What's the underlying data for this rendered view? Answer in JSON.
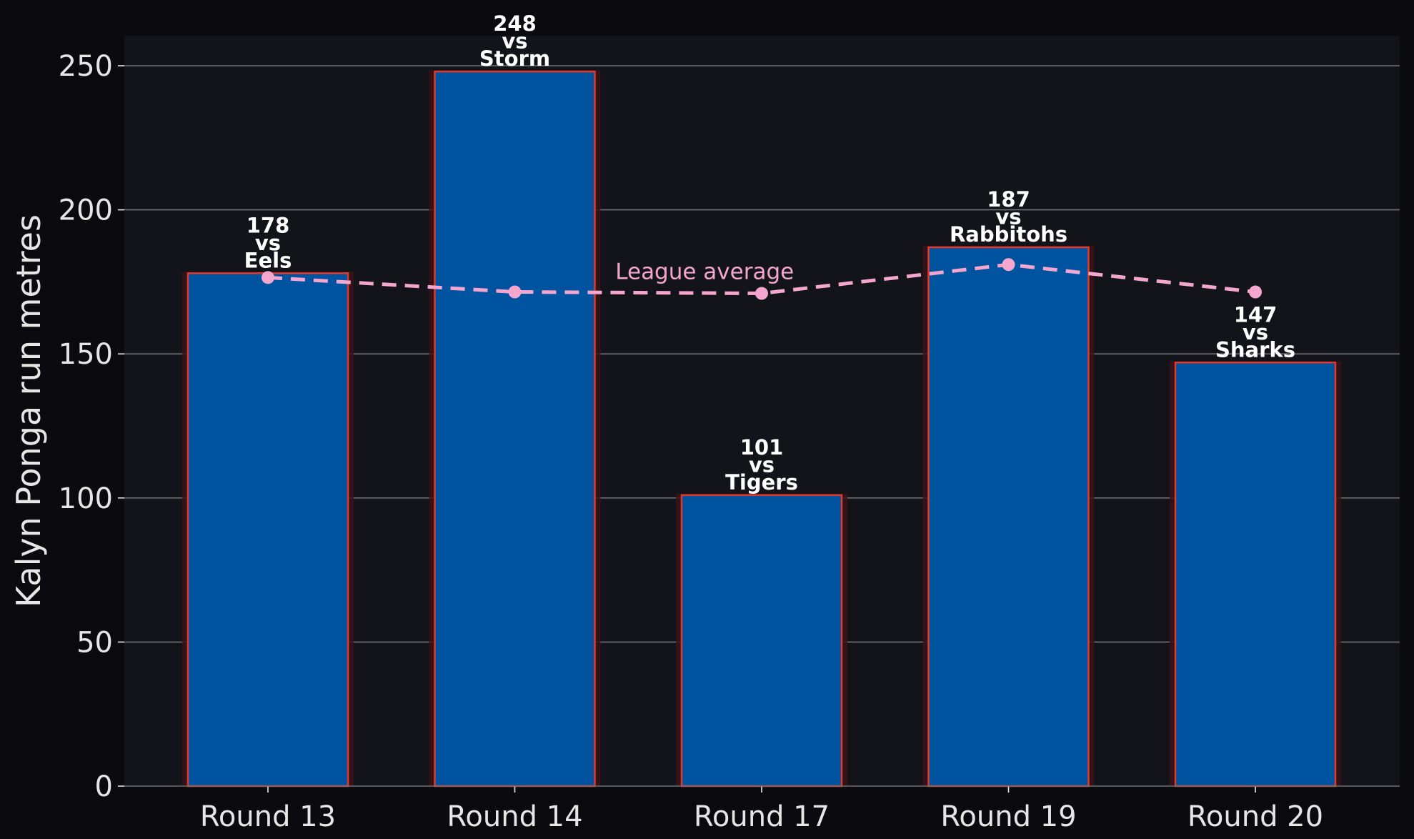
{
  "chart_data": {
    "type": "bar",
    "title": "",
    "xlabel": "",
    "ylabel": "Kalyn Ponga run metres",
    "categories": [
      "Round 13",
      "Round 14",
      "Round 17",
      "Round 19",
      "Round 20"
    ],
    "series": [
      {
        "name": "",
        "type": "bar",
        "values": [
          178,
          248,
          101,
          187,
          147
        ],
        "opponents": [
          "Eels",
          "Storm",
          "Tigers",
          "Rabbitohs",
          "Sharks"
        ],
        "vs_word": "vs"
      },
      {
        "name": "League average",
        "type": "line",
        "style": "dashed",
        "values": [
          176.5,
          171.5,
          171,
          181,
          171.5
        ]
      }
    ],
    "ylim": [
      0,
      260
    ],
    "yticks": [
      0,
      50,
      100,
      150,
      200,
      250
    ],
    "grid": "horizontal",
    "colors": {
      "page_background": "#0b0b0f",
      "plot_background": "#13131a",
      "bar_fill": "#00539f",
      "bar_edge": "#e03a2c",
      "bar_shadow": "#3a1418",
      "average_line": "#f4a6cf",
      "grid": "#6f6f74",
      "text": "#e6e6e6",
      "label_text": "#ffffff"
    }
  }
}
